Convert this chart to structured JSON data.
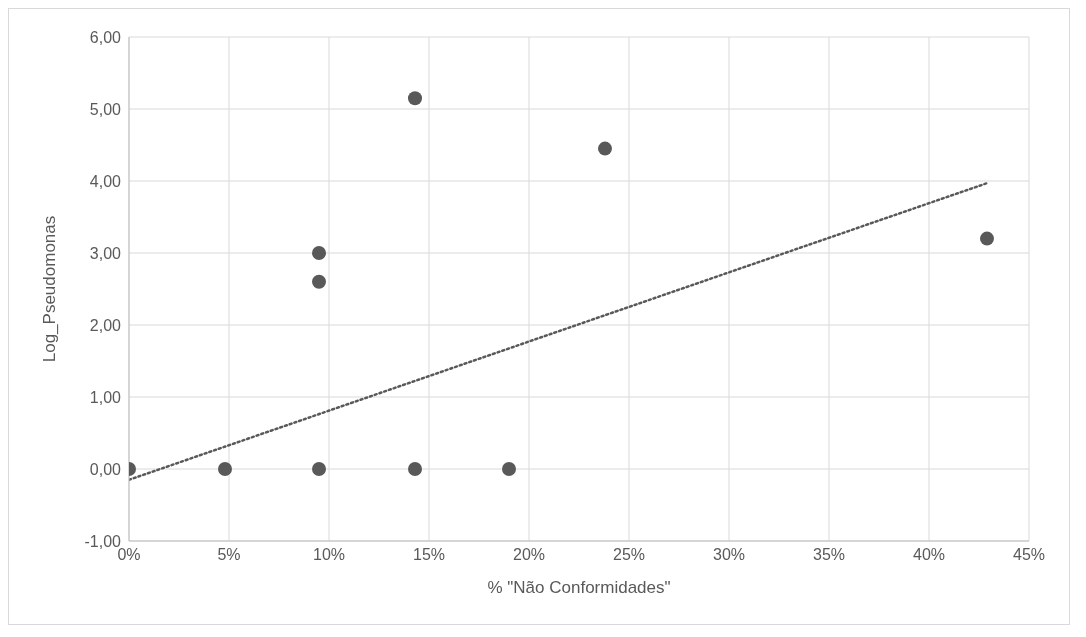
{
  "chart_data": {
    "type": "scatter",
    "xlabel": "% \"Não Conformidades\"",
    "ylabel": "Log_Pseudomonas",
    "xlim": [
      0,
      0.45
    ],
    "xticks": [
      {
        "value": 0,
        "label": "0%"
      },
      {
        "value": 0.05,
        "label": "5%"
      },
      {
        "value": 0.1,
        "label": "10%"
      },
      {
        "value": 0.15,
        "label": "15%"
      },
      {
        "value": 0.2,
        "label": "20%"
      },
      {
        "value": 0.25,
        "label": "25%"
      },
      {
        "value": 0.3,
        "label": "30%"
      },
      {
        "value": 0.35,
        "label": "35%"
      },
      {
        "value": 0.4,
        "label": "40%"
      },
      {
        "value": 0.45,
        "label": "45%"
      }
    ],
    "ylim": [
      -1,
      6
    ],
    "yticks": [
      {
        "value": -1,
        "label": "-1,00"
      },
      {
        "value": 0,
        "label": "0,00"
      },
      {
        "value": 1,
        "label": "1,00"
      },
      {
        "value": 2,
        "label": "2,00"
      },
      {
        "value": 3,
        "label": "3,00"
      },
      {
        "value": 4,
        "label": "4,00"
      },
      {
        "value": 5,
        "label": "5,00"
      },
      {
        "value": 6,
        "label": "6,00"
      }
    ],
    "grid": true,
    "legend": false,
    "series": [
      {
        "color": "#595959",
        "marker": "circle",
        "x": [
          0,
          0.048,
          0.095,
          0.095,
          0.095,
          0.143,
          0.143,
          0.19,
          0.238,
          0.429
        ],
        "values": [
          0,
          0,
          0,
          3.0,
          2.6,
          5.15,
          0,
          0,
          4.45,
          3.2
        ]
      },
      {
        "type": "line",
        "color": "#595959",
        "line_style": "dotted",
        "marker": "none",
        "x": [
          0,
          0.429
        ],
        "values": [
          -0.15,
          3.97
        ]
      }
    ]
  }
}
